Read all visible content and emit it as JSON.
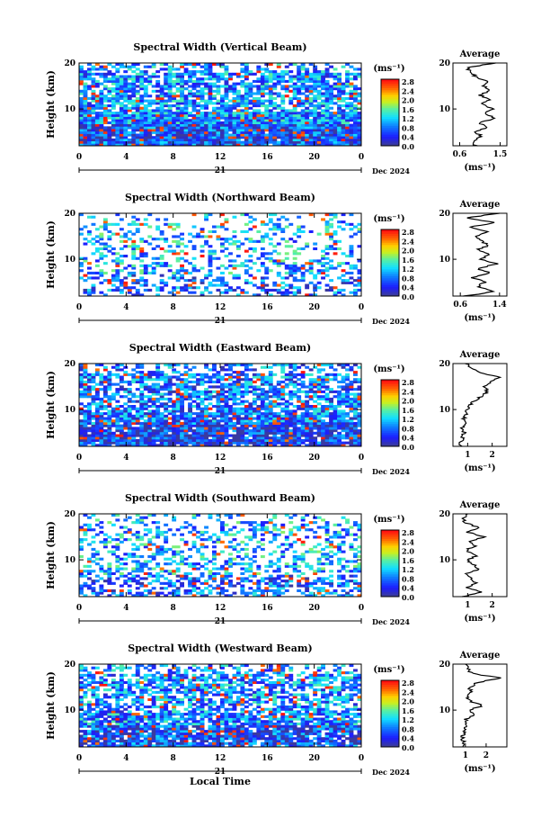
{
  "chart_data": [
    {
      "type": "heatmap",
      "title": "Spectral Width (Vertical Beam)",
      "xlabel": "",
      "ylabel": "Height (km)",
      "xlim": [
        0,
        24
      ],
      "ylim": [
        2,
        20
      ],
      "xticks": [
        "0",
        "4",
        "8",
        "12",
        "16",
        "20",
        "0"
      ],
      "yticks": [
        "10",
        "20"
      ],
      "date_marker": "21",
      "date_label": "Dec 2024",
      "colorbar": {
        "unit": "(ms⁻¹)",
        "ticks": [
          "2.8",
          "2.4",
          "2.0",
          "1.6",
          "1.2",
          "0.8",
          "0.4",
          "0.0"
        ]
      },
      "density": 0.85,
      "bias": 0.3,
      "profile": {
        "title": "Average",
        "xlabel": "(ms⁻¹)",
        "xticks": [
          "0.6",
          "1.5"
        ],
        "xlim": [
          0.45,
          1.65
        ],
        "yticks": [
          "10",
          "20"
        ],
        "heights": [
          2,
          3,
          4,
          5,
          6,
          7,
          8,
          9,
          10,
          11,
          12,
          13,
          14,
          15,
          16,
          17,
          18,
          19,
          20
        ],
        "values": [
          0.95,
          0.9,
          1.1,
          0.95,
          1.2,
          1.05,
          1.4,
          1.15,
          1.35,
          1.1,
          1.25,
          1.05,
          1.3,
          1.15,
          1.2,
          0.95,
          0.85,
          0.75,
          1.4
        ]
      }
    },
    {
      "type": "heatmap",
      "title": "Spectral Width (Northward Beam)",
      "xlabel": "",
      "ylabel": "Height (km)",
      "xlim": [
        0,
        24
      ],
      "ylim": [
        2,
        20
      ],
      "xticks": [
        "0",
        "4",
        "8",
        "12",
        "16",
        "20",
        "0"
      ],
      "yticks": [
        "10",
        "20"
      ],
      "date_marker": "21",
      "date_label": "Dec 2024",
      "colorbar": {
        "unit": "(ms⁻¹)",
        "ticks": [
          "2.8",
          "2.4",
          "2.0",
          "1.6",
          "1.2",
          "0.8",
          "0.4",
          "0.0"
        ]
      },
      "density": 0.35,
      "bias": 0.35,
      "profile": {
        "title": "Average",
        "xlabel": "(ms⁻¹)",
        "xticks": [
          "0.6",
          "1.4"
        ],
        "xlim": [
          0.45,
          1.55
        ],
        "yticks": [
          "10",
          "20"
        ],
        "heights": [
          2,
          3,
          4,
          5,
          6,
          7,
          8,
          9,
          10,
          11,
          12,
          13,
          14,
          15,
          16,
          17,
          18,
          19,
          20
        ],
        "values": [
          0.7,
          1.3,
          0.95,
          1.1,
          0.85,
          1.2,
          0.95,
          1.35,
          1.0,
          1.2,
          0.95,
          1.15,
          1.05,
          0.9,
          1.2,
          0.8,
          1.3,
          0.7,
          1.4
        ]
      }
    },
    {
      "type": "heatmap",
      "title": "Spectral Width (Eastward Beam)",
      "xlabel": "",
      "ylabel": "Height (km)",
      "xlim": [
        0,
        24
      ],
      "ylim": [
        2,
        20
      ],
      "xticks": [
        "0",
        "4",
        "8",
        "12",
        "16",
        "20",
        "0"
      ],
      "yticks": [
        "10",
        "20"
      ],
      "date_marker": "21",
      "date_label": "Dec 2024",
      "colorbar": {
        "unit": "(ms⁻¹)",
        "ticks": [
          "2.8",
          "2.4",
          "2.0",
          "1.6",
          "1.2",
          "0.8",
          "0.4",
          "0.0"
        ]
      },
      "density": 0.8,
      "bias": 0.25,
      "profile": {
        "title": "Average",
        "xlabel": "(ms⁻¹)",
        "xticks": [
          "1",
          "2"
        ],
        "xlim": [
          0.4,
          2.6
        ],
        "yticks": [
          "10",
          "20"
        ],
        "heights": [
          2,
          3,
          4,
          5,
          6,
          7,
          8,
          9,
          10,
          11,
          12,
          13,
          14,
          15,
          16,
          17,
          18,
          19,
          20
        ],
        "values": [
          0.7,
          0.75,
          0.8,
          0.85,
          0.8,
          0.9,
          0.85,
          0.95,
          1.0,
          1.1,
          1.3,
          1.6,
          1.8,
          1.7,
          2.0,
          2.3,
          1.6,
          1.2,
          0.9
        ]
      }
    },
    {
      "type": "heatmap",
      "title": "Spectral Width (Southward Beam)",
      "xlabel": "",
      "ylabel": "Height (km)",
      "xlim": [
        0,
        24
      ],
      "ylim": [
        2,
        20
      ],
      "xticks": [
        "0",
        "4",
        "8",
        "12",
        "16",
        "20",
        "0"
      ],
      "yticks": [
        "10",
        "20"
      ],
      "date_marker": "21",
      "date_label": "Dec 2024",
      "colorbar": {
        "unit": "(ms⁻¹)",
        "ticks": [
          "2.8",
          "2.4",
          "2.0",
          "1.6",
          "1.2",
          "0.8",
          "0.4",
          "0.0"
        ]
      },
      "density": 0.4,
      "bias": 0.35,
      "profile": {
        "title": "Average",
        "xlabel": "(ms⁻¹)",
        "xticks": [
          "1",
          "2"
        ],
        "xlim": [
          0.4,
          2.6
        ],
        "yticks": [
          "10",
          "20"
        ],
        "heights": [
          2,
          3,
          4,
          5,
          6,
          7,
          8,
          9,
          10,
          11,
          12,
          13,
          14,
          15,
          16,
          17,
          18,
          19,
          20
        ],
        "values": [
          0.8,
          1.6,
          1.0,
          1.3,
          1.1,
          0.9,
          1.5,
          1.2,
          1.0,
          1.4,
          0.9,
          1.3,
          1.1,
          1.7,
          1.0,
          1.5,
          0.9,
          0.8,
          1.0
        ]
      }
    },
    {
      "type": "heatmap",
      "title": "Spectral Width (Westward Beam)",
      "xlabel": "Local Time",
      "ylabel": "Height (km)",
      "xlim": [
        0,
        24
      ],
      "ylim": [
        2,
        20
      ],
      "xticks": [
        "0",
        "4",
        "8",
        "12",
        "16",
        "20",
        "0"
      ],
      "yticks": [
        "10",
        "20"
      ],
      "date_marker": "21",
      "date_label": "Dec 2024",
      "colorbar": {
        "unit": "(ms⁻¹)",
        "ticks": [
          "2.8",
          "2.4",
          "2.0",
          "1.6",
          "1.2",
          "0.8",
          "0.4",
          "0.0"
        ]
      },
      "density": 0.75,
      "bias": 0.3,
      "profile": {
        "title": "Average",
        "xlabel": "(ms⁻¹)",
        "xticks": [
          "1",
          "2"
        ],
        "xlim": [
          0.4,
          3.0
        ],
        "yticks": [
          "10",
          "20"
        ],
        "heights": [
          2,
          3,
          4,
          5,
          6,
          7,
          8,
          9,
          10,
          11,
          12,
          13,
          14,
          15,
          16,
          17,
          18,
          19,
          20
        ],
        "values": [
          0.8,
          0.9,
          0.85,
          0.95,
          1.0,
          1.1,
          1.0,
          1.4,
          1.2,
          1.8,
          1.2,
          1.1,
          1.3,
          1.2,
          1.6,
          2.7,
          1.3,
          1.1,
          1.0
        ]
      }
    }
  ]
}
